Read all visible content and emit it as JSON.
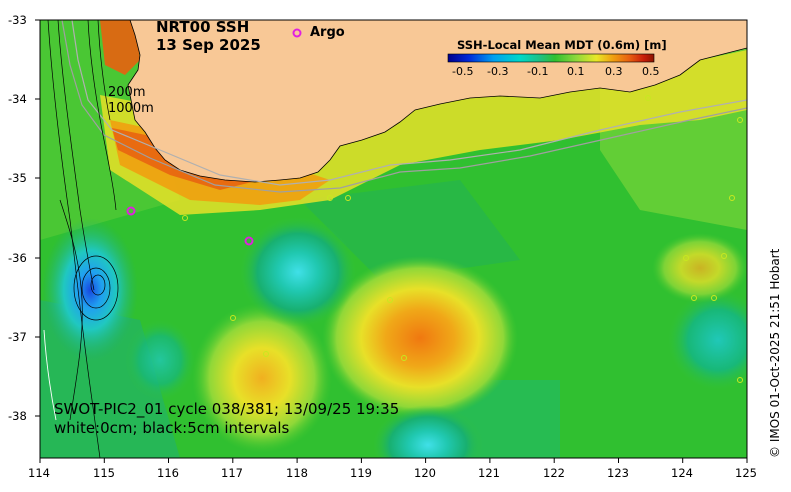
{
  "title": {
    "product": "NRT00 SSH",
    "date": "13 Sep 2025"
  },
  "legend": {
    "argo_label": "Argo",
    "colorbar_title": "SSH-Local Mean MDT (0.6m) [m]",
    "colorbar_ticks": [
      "-0.5",
      "-0.3",
      "-0.1",
      "0.1",
      "0.3",
      "0.5"
    ],
    "colorbar_colors": [
      "#00008c",
      "#0028d8",
      "#00a0f0",
      "#00d8c8",
      "#20c080",
      "#30c030",
      "#8cd83c",
      "#e8e828",
      "#f0a010",
      "#e86010",
      "#c81e0a",
      "#8c1400"
    ]
  },
  "contours": {
    "depth1": "200m",
    "depth2": "1000m"
  },
  "swot": {
    "line1": "SWOT-PIC2_01 cycle 038/381; 13/09/25 19:35",
    "line2": "white:0cm; black:5cm intervals"
  },
  "axes": {
    "x_ticks": [
      "114",
      "115",
      "116",
      "117",
      "118",
      "119",
      "120",
      "121",
      "122",
      "123",
      "124",
      "125"
    ],
    "y_ticks": [
      "-33",
      "-34",
      "-35",
      "-36",
      "-37",
      "-38"
    ]
  },
  "copyright": "© IMOS 01-Oct-2025 21:51 Hobart",
  "colors": {
    "land": "#f8c896",
    "argo": "#e020e0",
    "ocean_base": "#30c030"
  }
}
